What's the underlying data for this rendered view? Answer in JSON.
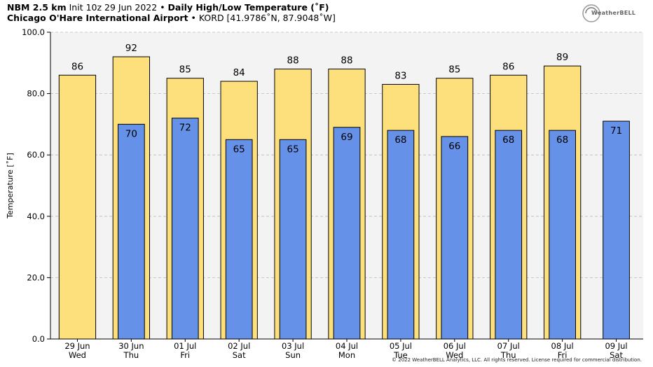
{
  "header": {
    "model": "NBM 2.5 km",
    "init": "Init 10z 29 Jun 2022",
    "bullet": "•",
    "product": "Daily High/Low Temperature (˚F)",
    "location": "Chicago O'Hare International Airport",
    "station": "KORD [41.9786˚N, 87.9048˚W]"
  },
  "logo": {
    "text": "WeatherBELL"
  },
  "copyright": "© 2022 WeatherBELL Analytics, LLC. All rights reserved. License required for commercial distribution.",
  "colors": {
    "high": "#fde07b",
    "low": "#6592e8",
    "plot_bg": "#f3f3f3",
    "grid": "#bbbbbb"
  },
  "chart_data": {
    "type": "bar",
    "ylabel": "Temperature [˚F]",
    "ylim": [
      0,
      100
    ],
    "yticks": [
      "0.0",
      "20.0",
      "40.0",
      "60.0",
      "80.0",
      "100.0"
    ],
    "grid": true,
    "categories": [
      {
        "date": "29 Jun",
        "day": "Wed"
      },
      {
        "date": "30 Jun",
        "day": "Thu"
      },
      {
        "date": "01 Jul",
        "day": "Fri"
      },
      {
        "date": "02 Jul",
        "day": "Sat"
      },
      {
        "date": "03 Jul",
        "day": "Sun"
      },
      {
        "date": "04 Jul",
        "day": "Mon"
      },
      {
        "date": "05 Jul",
        "day": "Tue"
      },
      {
        "date": "06 Jul",
        "day": "Wed"
      },
      {
        "date": "07 Jul",
        "day": "Thu"
      },
      {
        "date": "08 Jul",
        "day": "Fri"
      },
      {
        "date": "09 Jul",
        "day": "Sat"
      }
    ],
    "series": [
      {
        "key": "high",
        "values": [
          86,
          92,
          85,
          84,
          88,
          88,
          83,
          85,
          86,
          89,
          null
        ],
        "labels": [
          "86",
          "92",
          "85",
          "84",
          "88",
          "88",
          "83",
          "85",
          "86",
          "89",
          ""
        ]
      },
      {
        "key": "low",
        "values": [
          null,
          70,
          72,
          65,
          65,
          69,
          68,
          66,
          68,
          68,
          71
        ],
        "labels": [
          "",
          "70",
          "72",
          "65",
          "65",
          "69",
          "68",
          "66",
          "68",
          "68",
          "71"
        ]
      }
    ]
  }
}
